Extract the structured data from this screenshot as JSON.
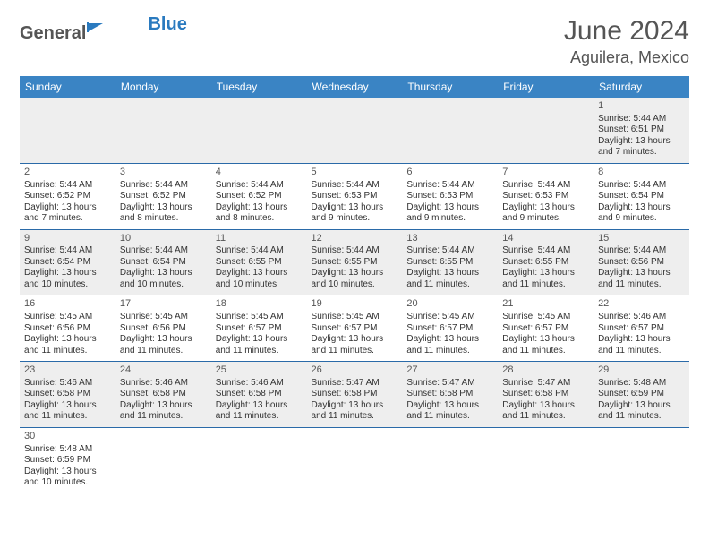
{
  "logo": {
    "general": "General",
    "blue": "Blue"
  },
  "title": "June 2024",
  "subtitle": "Aguilera, Mexico",
  "header_bg": "#3a84c4",
  "row_alt_bg": "#eeeeee",
  "divider_color": "#2a6aa8",
  "weekdays": [
    "Sunday",
    "Monday",
    "Tuesday",
    "Wednesday",
    "Thursday",
    "Friday",
    "Saturday"
  ],
  "weeks": [
    [
      null,
      null,
      null,
      null,
      null,
      null,
      {
        "n": "1",
        "sr": "Sunrise: 5:44 AM",
        "ss": "Sunset: 6:51 PM",
        "d1": "Daylight: 13 hours",
        "d2": "and 7 minutes."
      }
    ],
    [
      {
        "n": "2",
        "sr": "Sunrise: 5:44 AM",
        "ss": "Sunset: 6:52 PM",
        "d1": "Daylight: 13 hours",
        "d2": "and 7 minutes."
      },
      {
        "n": "3",
        "sr": "Sunrise: 5:44 AM",
        "ss": "Sunset: 6:52 PM",
        "d1": "Daylight: 13 hours",
        "d2": "and 8 minutes."
      },
      {
        "n": "4",
        "sr": "Sunrise: 5:44 AM",
        "ss": "Sunset: 6:52 PM",
        "d1": "Daylight: 13 hours",
        "d2": "and 8 minutes."
      },
      {
        "n": "5",
        "sr": "Sunrise: 5:44 AM",
        "ss": "Sunset: 6:53 PM",
        "d1": "Daylight: 13 hours",
        "d2": "and 9 minutes."
      },
      {
        "n": "6",
        "sr": "Sunrise: 5:44 AM",
        "ss": "Sunset: 6:53 PM",
        "d1": "Daylight: 13 hours",
        "d2": "and 9 minutes."
      },
      {
        "n": "7",
        "sr": "Sunrise: 5:44 AM",
        "ss": "Sunset: 6:53 PM",
        "d1": "Daylight: 13 hours",
        "d2": "and 9 minutes."
      },
      {
        "n": "8",
        "sr": "Sunrise: 5:44 AM",
        "ss": "Sunset: 6:54 PM",
        "d1": "Daylight: 13 hours",
        "d2": "and 9 minutes."
      }
    ],
    [
      {
        "n": "9",
        "sr": "Sunrise: 5:44 AM",
        "ss": "Sunset: 6:54 PM",
        "d1": "Daylight: 13 hours",
        "d2": "and 10 minutes."
      },
      {
        "n": "10",
        "sr": "Sunrise: 5:44 AM",
        "ss": "Sunset: 6:54 PM",
        "d1": "Daylight: 13 hours",
        "d2": "and 10 minutes."
      },
      {
        "n": "11",
        "sr": "Sunrise: 5:44 AM",
        "ss": "Sunset: 6:55 PM",
        "d1": "Daylight: 13 hours",
        "d2": "and 10 minutes."
      },
      {
        "n": "12",
        "sr": "Sunrise: 5:44 AM",
        "ss": "Sunset: 6:55 PM",
        "d1": "Daylight: 13 hours",
        "d2": "and 10 minutes."
      },
      {
        "n": "13",
        "sr": "Sunrise: 5:44 AM",
        "ss": "Sunset: 6:55 PM",
        "d1": "Daylight: 13 hours",
        "d2": "and 11 minutes."
      },
      {
        "n": "14",
        "sr": "Sunrise: 5:44 AM",
        "ss": "Sunset: 6:55 PM",
        "d1": "Daylight: 13 hours",
        "d2": "and 11 minutes."
      },
      {
        "n": "15",
        "sr": "Sunrise: 5:44 AM",
        "ss": "Sunset: 6:56 PM",
        "d1": "Daylight: 13 hours",
        "d2": "and 11 minutes."
      }
    ],
    [
      {
        "n": "16",
        "sr": "Sunrise: 5:45 AM",
        "ss": "Sunset: 6:56 PM",
        "d1": "Daylight: 13 hours",
        "d2": "and 11 minutes."
      },
      {
        "n": "17",
        "sr": "Sunrise: 5:45 AM",
        "ss": "Sunset: 6:56 PM",
        "d1": "Daylight: 13 hours",
        "d2": "and 11 minutes."
      },
      {
        "n": "18",
        "sr": "Sunrise: 5:45 AM",
        "ss": "Sunset: 6:57 PM",
        "d1": "Daylight: 13 hours",
        "d2": "and 11 minutes."
      },
      {
        "n": "19",
        "sr": "Sunrise: 5:45 AM",
        "ss": "Sunset: 6:57 PM",
        "d1": "Daylight: 13 hours",
        "d2": "and 11 minutes."
      },
      {
        "n": "20",
        "sr": "Sunrise: 5:45 AM",
        "ss": "Sunset: 6:57 PM",
        "d1": "Daylight: 13 hours",
        "d2": "and 11 minutes."
      },
      {
        "n": "21",
        "sr": "Sunrise: 5:45 AM",
        "ss": "Sunset: 6:57 PM",
        "d1": "Daylight: 13 hours",
        "d2": "and 11 minutes."
      },
      {
        "n": "22",
        "sr": "Sunrise: 5:46 AM",
        "ss": "Sunset: 6:57 PM",
        "d1": "Daylight: 13 hours",
        "d2": "and 11 minutes."
      }
    ],
    [
      {
        "n": "23",
        "sr": "Sunrise: 5:46 AM",
        "ss": "Sunset: 6:58 PM",
        "d1": "Daylight: 13 hours",
        "d2": "and 11 minutes."
      },
      {
        "n": "24",
        "sr": "Sunrise: 5:46 AM",
        "ss": "Sunset: 6:58 PM",
        "d1": "Daylight: 13 hours",
        "d2": "and 11 minutes."
      },
      {
        "n": "25",
        "sr": "Sunrise: 5:46 AM",
        "ss": "Sunset: 6:58 PM",
        "d1": "Daylight: 13 hours",
        "d2": "and 11 minutes."
      },
      {
        "n": "26",
        "sr": "Sunrise: 5:47 AM",
        "ss": "Sunset: 6:58 PM",
        "d1": "Daylight: 13 hours",
        "d2": "and 11 minutes."
      },
      {
        "n": "27",
        "sr": "Sunrise: 5:47 AM",
        "ss": "Sunset: 6:58 PM",
        "d1": "Daylight: 13 hours",
        "d2": "and 11 minutes."
      },
      {
        "n": "28",
        "sr": "Sunrise: 5:47 AM",
        "ss": "Sunset: 6:58 PM",
        "d1": "Daylight: 13 hours",
        "d2": "and 11 minutes."
      },
      {
        "n": "29",
        "sr": "Sunrise: 5:48 AM",
        "ss": "Sunset: 6:59 PM",
        "d1": "Daylight: 13 hours",
        "d2": "and 11 minutes."
      }
    ],
    [
      {
        "n": "30",
        "sr": "Sunrise: 5:48 AM",
        "ss": "Sunset: 6:59 PM",
        "d1": "Daylight: 13 hours",
        "d2": "and 10 minutes."
      },
      null,
      null,
      null,
      null,
      null,
      null
    ]
  ]
}
